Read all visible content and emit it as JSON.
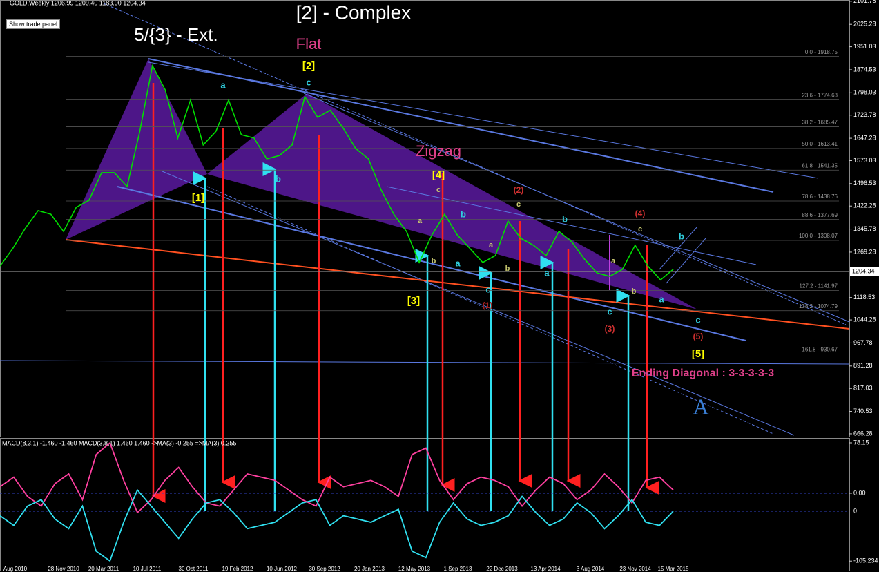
{
  "chart_data": [
    {
      "type": "line",
      "title": "GOLD,Weekly  1206.99 1209.40 1183.90 1204.34",
      "button": "Show trade panel",
      "xlabels": [
        "Aug 2010",
        "28 Nov 2010",
        "20 Mar 2011",
        "10 Jul 2011",
        "30 Oct 2011",
        "19 Feb 2012",
        "10 Jun 2012",
        "30 Sep 2012",
        "20 Jan 2013",
        "12 May 2013",
        "1 Sep 2013",
        "22 Dec 2013",
        "13 Apr 2014",
        "3 Aug 2014",
        "23 Nov 2014",
        "15 Mar 2015"
      ],
      "series": [
        {
          "color": "#00e000",
          "values": [
            1223,
            1281,
            1349,
            1407,
            1395,
            1338,
            1418,
            1441,
            1533,
            1533,
            1487,
            1670,
            1888,
            1808,
            1648,
            1774,
            1625,
            1670,
            1774,
            1659,
            1648,
            1579,
            1590,
            1625,
            1785,
            1717,
            1740,
            1682,
            1613,
            1579,
            1476,
            1395,
            1338,
            1235,
            1326,
            1395,
            1326,
            1281,
            1235,
            1258,
            1372,
            1315,
            1292,
            1258,
            1338,
            1304,
            1247,
            1200,
            1189,
            1212,
            1292,
            1223,
            1177,
            1212
          ]
        }
      ],
      "ylim": [
        657,
        2106
      ],
      "yticks": [
        2101.78,
        2025.28,
        1951.03,
        1874.53,
        1798.03,
        1723.78,
        1647.28,
        1573.03,
        1496.53,
        1422.28,
        1345.78,
        1269.28,
        1118.53,
        1044.28,
        967.78,
        891.28,
        817.03,
        740.53,
        666.28
      ],
      "current_price": 1204.34,
      "fib_levels": [
        {
          "value": 1918.75,
          "label": "0.0 - 1918.75"
        },
        {
          "value": 1774.63,
          "label": "23.6 - 1774.63"
        },
        {
          "value": 1685.47,
          "label": "38.2 - 1685.47"
        },
        {
          "value": 1613.41,
          "label": "50.0 - 1613.41"
        },
        {
          "value": 1541.35,
          "label": "61.8 - 1541.35"
        },
        {
          "value": 1438.76,
          "label": "78.6 - 1438.76"
        },
        {
          "value": 1377.69,
          "label": "88.6 - 1377.69"
        },
        {
          "value": 1308.07,
          "label": "100.0 - 1308.07"
        },
        {
          "value": 1141.97,
          "label": "127.2 - 1141.97"
        },
        {
          "value": 1074.79,
          "label": "138.2 - 1074.79"
        },
        {
          "value": 930.67,
          "label": "161.8 - 930.67"
        }
      ],
      "annotations": [
        {
          "text": "[2] - Complex",
          "color": "#ffffff"
        },
        {
          "text": "5/{3} - Ext.",
          "color": "#ffffff"
        },
        {
          "text": "Flat",
          "color": "#e0408a"
        },
        {
          "text": "[2]",
          "color": "#ffff00"
        },
        {
          "text": "a",
          "color": "#30d0e0"
        },
        {
          "text": "c",
          "color": "#30d0e0"
        },
        {
          "text": "Zigzag",
          "color": "#e0408a"
        },
        {
          "text": "[4]",
          "color": "#ffff00"
        },
        {
          "text": "c",
          "color": "#c8c870"
        },
        {
          "text": "(2)",
          "color": "#d03030"
        },
        {
          "text": "c",
          "color": "#c8c870"
        },
        {
          "text": "(4)",
          "color": "#d03030"
        },
        {
          "text": "c",
          "color": "#c8c870"
        },
        {
          "text": "b",
          "color": "#30d0e0"
        },
        {
          "text": "b",
          "color": "#30d0e0"
        },
        {
          "text": "b",
          "color": "#30d0e0"
        },
        {
          "text": "a",
          "color": "#c8c870"
        },
        {
          "text": "a",
          "color": "#c8c870"
        },
        {
          "text": "b",
          "color": "#c8c870"
        },
        {
          "text": "a",
          "color": "#30d0e0"
        },
        {
          "text": "b",
          "color": "#c8c870"
        },
        {
          "text": "a",
          "color": "#c8c870"
        },
        {
          "text": "b",
          "color": "#c8c870"
        },
        {
          "text": "a",
          "color": "#30d0e0"
        },
        {
          "text": "c",
          "color": "#30d0e0"
        },
        {
          "text": "(1)",
          "color": "#a02020"
        },
        {
          "text": "[3]",
          "color": "#ffff00"
        },
        {
          "text": "[1]",
          "color": "#ffff00"
        },
        {
          "text": "b",
          "color": "#30d0e0"
        },
        {
          "text": "a",
          "color": "#30d0e0"
        },
        {
          "text": "c",
          "color": "#30d0e0"
        },
        {
          "text": "(3)",
          "color": "#d03030"
        },
        {
          "text": "c",
          "color": "#30d0e0"
        },
        {
          "text": "(5)",
          "color": "#d03030"
        },
        {
          "text": "[5]",
          "color": "#ffff00"
        },
        {
          "text": "Ending Diagonal : 3-3-3-3-3",
          "color": "#e0408a"
        },
        {
          "text": "A",
          "color": "#3a7fd5"
        }
      ]
    },
    {
      "type": "line",
      "title": "MACD(8,3,1) -1.460 -1.460  MACD(3,8,1) 1.460 1.460  ->MA(3) -0.255  =>MA(3) 0.255",
      "series": [
        {
          "color": "#ff40a0",
          "values": [
            10,
            25,
            -5,
            -20,
            15,
            30,
            -10,
            60,
            78,
            20,
            -30,
            -10,
            20,
            40,
            10,
            -15,
            -20,
            5,
            30,
            25,
            20,
            5,
            -10,
            -20,
            25,
            10,
            15,
            20,
            10,
            -5,
            60,
            70,
            20,
            -10,
            15,
            25,
            20,
            10,
            -20,
            5,
            25,
            15,
            -10,
            5,
            30,
            10,
            -15,
            20,
            25,
            5
          ]
        },
        {
          "color": "#30e0f0",
          "values": [
            -35,
            -50,
            -20,
            -10,
            -40,
            -55,
            -20,
            -90,
            -105,
            -45,
            5,
            -20,
            -45,
            -70,
            -40,
            -15,
            -10,
            -30,
            -55,
            -50,
            -45,
            -30,
            -15,
            -10,
            -50,
            -35,
            -40,
            -45,
            -35,
            -25,
            -90,
            -100,
            -45,
            -15,
            -40,
            -50,
            -45,
            -35,
            -5,
            -30,
            -50,
            -40,
            -15,
            -30,
            -55,
            -35,
            -10,
            -45,
            -50,
            -28
          ]
        }
      ],
      "ylim": [
        -120,
        83.5
      ],
      "yticks": [
        78.15,
        {
          "value": 0,
          "label": "0.00"
        },
        -105.234
      ],
      "zero_label": "0"
    }
  ]
}
